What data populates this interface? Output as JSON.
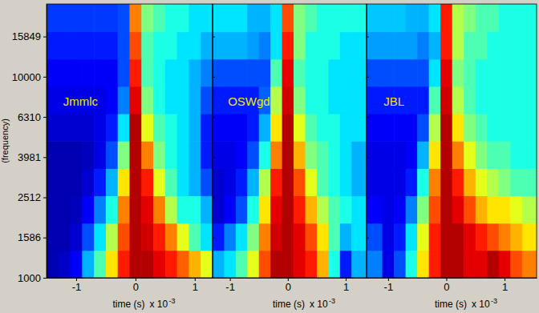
{
  "chart_data": [
    {
      "type": "heatmap",
      "title": "Jmmlc",
      "x_label": "time (s)",
      "x_scale_label": {
        "base": "x 10",
        "exponent": "-3"
      },
      "y_label": "(frequency)",
      "log": "y",
      "color": "jet",
      "zlim": [
        0,
        1
      ],
      "xlim": [
        -1.5,
        1.3
      ],
      "xticks": [
        -1,
        0,
        1
      ],
      "ylim": [
        1000,
        23000
      ],
      "yticks": [
        1000,
        1586,
        2512,
        3981,
        6310,
        10000,
        15849
      ],
      "x_bins": [
        -1.5,
        -1.3,
        -1.1,
        -0.9,
        -0.7,
        -0.5,
        -0.3,
        -0.1,
        0.1,
        0.3,
        0.5,
        0.7,
        0.9,
        1.1,
        1.3
      ],
      "y_bins": [
        1000,
        1370,
        1870,
        2560,
        3500,
        4790,
        6550,
        8960,
        12250,
        16760,
        23000
      ],
      "cells": [
        [
          0.05,
          0.07,
          0.12,
          0.3,
          0.45,
          0.65,
          0.85,
          0.95,
          0.95,
          0.9,
          0.85,
          0.78,
          0.7,
          0.6
        ],
        [
          0.05,
          0.05,
          0.08,
          0.2,
          0.35,
          0.55,
          0.8,
          0.95,
          0.92,
          0.85,
          0.75,
          0.6,
          0.45,
          0.35
        ],
        [
          0.05,
          0.05,
          0.06,
          0.12,
          0.25,
          0.4,
          0.75,
          0.95,
          0.9,
          0.75,
          0.55,
          0.4,
          0.4,
          0.3
        ],
        [
          0.05,
          0.05,
          0.05,
          0.08,
          0.15,
          0.3,
          0.65,
          0.95,
          0.85,
          0.6,
          0.45,
          0.35,
          0.3,
          0.2
        ],
        [
          0.05,
          0.05,
          0.05,
          0.06,
          0.1,
          0.2,
          0.5,
          0.95,
          0.75,
          0.5,
          0.4,
          0.35,
          0.3,
          0.15
        ],
        [
          0.08,
          0.08,
          0.08,
          0.08,
          0.1,
          0.15,
          0.35,
          0.95,
          0.6,
          0.45,
          0.4,
          0.35,
          0.3,
          0.15
        ],
        [
          0.1,
          0.1,
          0.1,
          0.1,
          0.1,
          0.12,
          0.25,
          0.9,
          0.5,
          0.4,
          0.35,
          0.35,
          0.3,
          0.2
        ],
        [
          0.12,
          0.12,
          0.12,
          0.12,
          0.12,
          0.12,
          0.2,
          0.85,
          0.45,
          0.4,
          0.35,
          0.35,
          0.3,
          0.25
        ],
        [
          0.15,
          0.15,
          0.15,
          0.15,
          0.15,
          0.15,
          0.2,
          0.8,
          0.45,
          0.4,
          0.4,
          0.35,
          0.35,
          0.3
        ],
        [
          0.18,
          0.18,
          0.18,
          0.18,
          0.18,
          0.18,
          0.2,
          0.75,
          0.5,
          0.45,
          0.4,
          0.4,
          0.35,
          0.35
        ]
      ]
    },
    {
      "type": "heatmap",
      "title": "OSWgd",
      "x_label": "time (s)",
      "x_scale_label": {
        "base": "x 10",
        "exponent": "-3"
      },
      "log": "y",
      "color": "jet",
      "zlim": [
        0,
        1
      ],
      "tick_labels": "x",
      "xlim": [
        -1.3,
        1.36
      ],
      "xticks": [
        -1,
        0,
        1
      ],
      "ylim": [
        1000,
        23000
      ],
      "yticks": [
        1000,
        1586,
        2512,
        3981,
        6310,
        10000,
        15849
      ],
      "x_bins": [
        -1.3,
        -1.1,
        -0.9,
        -0.7,
        -0.5,
        -0.3,
        -0.1,
        0.1,
        0.3,
        0.5,
        0.7,
        0.9,
        1.1,
        1.36
      ],
      "y_bins": [
        1000,
        1370,
        1870,
        2560,
        3500,
        4790,
        6550,
        8960,
        12250,
        16760,
        23000
      ],
      "cells": [
        [
          0.3,
          0.35,
          0.45,
          0.6,
          0.8,
          0.95,
          0.95,
          0.9,
          0.85,
          0.7,
          0.4,
          0.15,
          0.3
        ],
        [
          0.15,
          0.25,
          0.35,
          0.5,
          0.75,
          0.92,
          0.95,
          0.9,
          0.8,
          0.65,
          0.45,
          0.3,
          0.35
        ],
        [
          0.08,
          0.12,
          0.2,
          0.4,
          0.65,
          0.9,
          0.95,
          0.85,
          0.7,
          0.55,
          0.45,
          0.4,
          0.35
        ],
        [
          0.08,
          0.1,
          0.15,
          0.3,
          0.55,
          0.85,
          0.95,
          0.8,
          0.6,
          0.45,
          0.4,
          0.35,
          0.3
        ],
        [
          0.1,
          0.1,
          0.12,
          0.2,
          0.4,
          0.75,
          0.95,
          0.7,
          0.5,
          0.45,
          0.4,
          0.35,
          0.3
        ],
        [
          0.12,
          0.12,
          0.12,
          0.15,
          0.3,
          0.65,
          0.95,
          0.6,
          0.45,
          0.4,
          0.4,
          0.35,
          0.35
        ],
        [
          0.15,
          0.15,
          0.15,
          0.15,
          0.22,
          0.55,
          0.92,
          0.5,
          0.4,
          0.4,
          0.35,
          0.35,
          0.35
        ],
        [
          0.2,
          0.2,
          0.2,
          0.2,
          0.2,
          0.45,
          0.9,
          0.45,
          0.4,
          0.4,
          0.35,
          0.35,
          0.35
        ],
        [
          0.3,
          0.3,
          0.3,
          0.28,
          0.25,
          0.35,
          0.85,
          0.5,
          0.4,
          0.4,
          0.4,
          0.35,
          0.35
        ],
        [
          0.35,
          0.35,
          0.35,
          0.3,
          0.3,
          0.35,
          0.8,
          0.5,
          0.45,
          0.4,
          0.4,
          0.4,
          0.4
        ]
      ]
    },
    {
      "type": "heatmap",
      "title": "JBL",
      "x_label": "time (s)",
      "x_scale_label": {
        "base": "x 10",
        "exponent": "-3"
      },
      "log": "y",
      "color": "jet",
      "zlim": [
        0,
        1
      ],
      "tick_labels": "x",
      "xlim": [
        -1.37,
        1.55
      ],
      "xticks": [
        -1,
        0,
        1
      ],
      "ylim": [
        1000,
        23000
      ],
      "yticks": [
        1000,
        1586,
        2512,
        3981,
        6310,
        10000,
        15849
      ],
      "x_bins": [
        -1.37,
        -1.1,
        -0.9,
        -0.7,
        -0.5,
        -0.3,
        -0.1,
        0.1,
        0.3,
        0.5,
        0.7,
        0.9,
        1.1,
        1.3,
        1.55
      ],
      "y_bins": [
        1000,
        1370,
        1870,
        2560,
        3500,
        4790,
        6550,
        8960,
        12250,
        16760,
        23000
      ],
      "cells": [
        [
          0.25,
          0.1,
          0.2,
          0.4,
          0.65,
          0.85,
          0.95,
          0.95,
          0.9,
          0.9,
          0.95,
          0.9,
          0.8,
          0.75
        ],
        [
          0.2,
          0.1,
          0.15,
          0.35,
          0.6,
          0.85,
          0.95,
          0.95,
          0.9,
          0.85,
          0.8,
          0.75,
          0.7,
          0.65
        ],
        [
          0.12,
          0.1,
          0.12,
          0.25,
          0.5,
          0.8,
          0.95,
          0.9,
          0.8,
          0.7,
          0.65,
          0.65,
          0.6,
          0.55
        ],
        [
          0.1,
          0.1,
          0.1,
          0.15,
          0.4,
          0.75,
          0.95,
          0.85,
          0.7,
          0.6,
          0.55,
          0.5,
          0.45,
          0.45
        ],
        [
          0.1,
          0.1,
          0.1,
          0.12,
          0.3,
          0.65,
          0.95,
          0.75,
          0.6,
          0.5,
          0.45,
          0.45,
          0.4,
          0.4
        ],
        [
          0.12,
          0.12,
          0.12,
          0.12,
          0.2,
          0.55,
          0.95,
          0.65,
          0.5,
          0.45,
          0.4,
          0.4,
          0.4,
          0.4
        ],
        [
          0.15,
          0.15,
          0.15,
          0.15,
          0.15,
          0.45,
          0.92,
          0.55,
          0.45,
          0.4,
          0.4,
          0.4,
          0.4,
          0.4
        ],
        [
          0.2,
          0.2,
          0.2,
          0.2,
          0.2,
          0.35,
          0.9,
          0.5,
          0.45,
          0.4,
          0.4,
          0.4,
          0.4,
          0.4
        ],
        [
          0.28,
          0.28,
          0.28,
          0.28,
          0.25,
          0.3,
          0.85,
          0.55,
          0.45,
          0.45,
          0.4,
          0.4,
          0.4,
          0.4
        ],
        [
          0.32,
          0.32,
          0.32,
          0.3,
          0.3,
          0.35,
          0.85,
          0.55,
          0.5,
          0.45,
          0.45,
          0.4,
          0.4,
          0.4
        ]
      ]
    }
  ]
}
